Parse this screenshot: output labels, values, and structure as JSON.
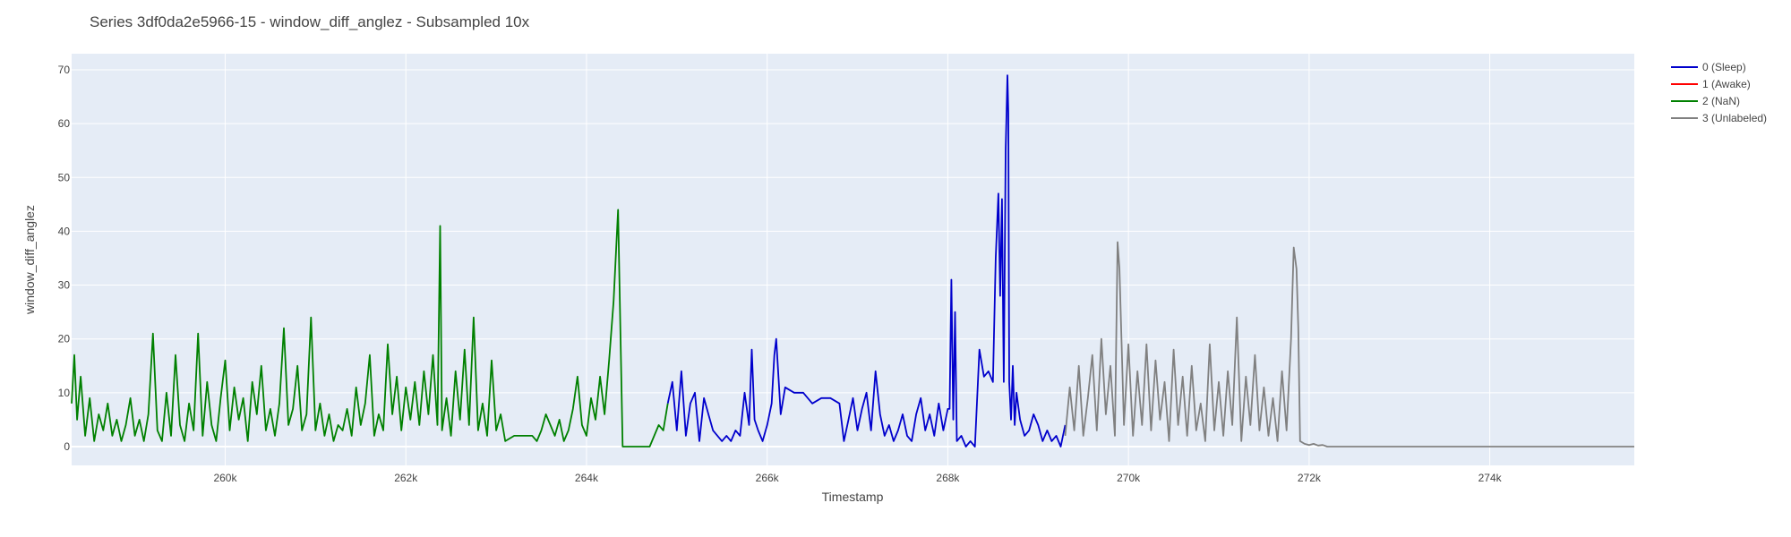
{
  "chart_data": {
    "type": "line",
    "title": "Series 3df0da2e5966-15 - window_diff_anglez - Subsampled 10x",
    "xlabel": "Timestamp",
    "ylabel": "window_diff_anglez",
    "xlim": [
      258300,
      275600
    ],
    "ylim": [
      -3.5,
      73
    ],
    "grid": true,
    "legend_position": "right",
    "x_ticks": [
      {
        "value": 260000,
        "label": "260k"
      },
      {
        "value": 262000,
        "label": "262k"
      },
      {
        "value": 264000,
        "label": "264k"
      },
      {
        "value": 266000,
        "label": "266k"
      },
      {
        "value": 268000,
        "label": "268k"
      },
      {
        "value": 270000,
        "label": "270k"
      },
      {
        "value": 272000,
        "label": "272k"
      },
      {
        "value": 274000,
        "label": "274k"
      }
    ],
    "y_ticks": [
      {
        "value": 0,
        "label": "0"
      },
      {
        "value": 10,
        "label": "10"
      },
      {
        "value": 20,
        "label": "20"
      },
      {
        "value": 30,
        "label": "30"
      },
      {
        "value": 40,
        "label": "40"
      },
      {
        "value": 50,
        "label": "50"
      },
      {
        "value": 60,
        "label": "60"
      },
      {
        "value": 70,
        "label": "70"
      }
    ],
    "series": [
      {
        "name": "0 (Sleep)",
        "color": "#0000cc",
        "x": [
          264900,
          264950,
          265000,
          265050,
          265100,
          265150,
          265200,
          265250,
          265300,
          265350,
          265400,
          265450,
          265500,
          265550,
          265600,
          265650,
          265700,
          265750,
          265800,
          265830,
          265860,
          265900,
          265950,
          266000,
          266050,
          266080,
          266100,
          266150,
          266200,
          266300,
          266400,
          266500,
          266600,
          266700,
          266800,
          266850,
          266900,
          266950,
          267000,
          267050,
          267100,
          267150,
          267200,
          267250,
          267300,
          267350,
          267400,
          267450,
          267500,
          267550,
          267600,
          267650,
          267700,
          267750,
          267800,
          267850,
          267900,
          267950,
          268000,
          268020,
          268040,
          268060,
          268080,
          268100,
          268150,
          268200,
          268250,
          268300,
          268350,
          268400,
          268450,
          268500,
          268530,
          268560,
          268580,
          268600,
          268620,
          268640,
          268660,
          268670,
          268680,
          268700,
          268720,
          268740,
          268760,
          268800,
          268850,
          268900,
          268950,
          269000,
          269050,
          269100,
          269150,
          269200,
          269250,
          269300
        ],
        "y": [
          8,
          12,
          3,
          14,
          2,
          8,
          10,
          1,
          9,
          6,
          3,
          2,
          1,
          2,
          1,
          3,
          2,
          10,
          4,
          18,
          5,
          3,
          1,
          4,
          8,
          17,
          20,
          6,
          11,
          10,
          10,
          8,
          9,
          9,
          8,
          1,
          5,
          9,
          3,
          7,
          10,
          3,
          14,
          6,
          2,
          4,
          1,
          3,
          6,
          2,
          1,
          6,
          9,
          3,
          6,
          2,
          8,
          3,
          7,
          7,
          31,
          5,
          25,
          1,
          2,
          0,
          1,
          0,
          18,
          13,
          14,
          12,
          35,
          47,
          28,
          46,
          12,
          55,
          69,
          62,
          12,
          5,
          15,
          4,
          10,
          5,
          2,
          3,
          6,
          4,
          1,
          3,
          1,
          2,
          0,
          4
        ]
      },
      {
        "name": "1 (Awake)",
        "color": "#ff0000",
        "x": [],
        "y": []
      },
      {
        "name": "2 (NaN)",
        "color": "#008000",
        "x": [
          258300,
          258330,
          258360,
          258400,
          258450,
          258500,
          258550,
          258600,
          258650,
          258700,
          258750,
          258800,
          258850,
          258900,
          258950,
          259000,
          259050,
          259100,
          259150,
          259200,
          259250,
          259300,
          259350,
          259400,
          259450,
          259500,
          259550,
          259600,
          259650,
          259700,
          259750,
          259800,
          259850,
          259900,
          259950,
          260000,
          260050,
          260100,
          260150,
          260200,
          260250,
          260300,
          260350,
          260400,
          260450,
          260500,
          260550,
          260600,
          260650,
          260700,
          260750,
          260800,
          260850,
          260900,
          260950,
          261000,
          261050,
          261100,
          261150,
          261200,
          261250,
          261300,
          261350,
          261400,
          261450,
          261500,
          261550,
          261600,
          261650,
          261700,
          261750,
          261800,
          261850,
          261900,
          261950,
          262000,
          262050,
          262100,
          262150,
          262200,
          262250,
          262300,
          262350,
          262380,
          262400,
          262450,
          262500,
          262550,
          262600,
          262650,
          262700,
          262750,
          262800,
          262850,
          262900,
          262950,
          263000,
          263050,
          263100,
          263200,
          263300,
          263400,
          263450,
          263500,
          263550,
          263600,
          263650,
          263700,
          263750,
          263800,
          263850,
          263900,
          263950,
          264000,
          264050,
          264100,
          264150,
          264200,
          264250,
          264300,
          264350,
          264400,
          264500,
          264600,
          264700,
          264800,
          264850,
          264900
        ],
        "y": [
          8,
          17,
          5,
          13,
          2,
          9,
          1,
          6,
          3,
          8,
          2,
          5,
          1,
          4,
          9,
          2,
          5,
          1,
          6,
          21,
          3,
          1,
          10,
          2,
          17,
          4,
          1,
          8,
          3,
          21,
          2,
          12,
          4,
          1,
          9,
          16,
          3,
          11,
          5,
          9,
          1,
          12,
          6,
          15,
          3,
          7,
          2,
          8,
          22,
          4,
          7,
          15,
          3,
          6,
          24,
          3,
          8,
          2,
          6,
          1,
          4,
          3,
          7,
          2,
          11,
          4,
          8,
          17,
          2,
          6,
          3,
          19,
          6,
          13,
          3,
          11,
          5,
          12,
          4,
          14,
          6,
          17,
          4,
          41,
          3,
          9,
          2,
          14,
          5,
          18,
          4,
          24,
          3,
          8,
          2,
          16,
          3,
          6,
          1,
          2,
          2,
          2,
          1,
          3,
          6,
          4,
          2,
          5,
          1,
          3,
          7,
          13,
          4,
          2,
          9,
          5,
          13,
          6,
          16,
          27,
          44,
          0,
          0,
          0,
          0,
          4,
          3,
          8
        ]
      },
      {
        "name": "3 (Unlabeled)",
        "color": "#808080",
        "x": [
          269300,
          269350,
          269400,
          269450,
          269500,
          269550,
          269600,
          269650,
          269700,
          269750,
          269800,
          269850,
          269880,
          269900,
          269950,
          270000,
          270050,
          270100,
          270150,
          270200,
          270250,
          270300,
          270350,
          270400,
          270450,
          270500,
          270550,
          270600,
          270650,
          270700,
          270750,
          270800,
          270850,
          270900,
          270950,
          271000,
          271050,
          271100,
          271150,
          271200,
          271250,
          271300,
          271350,
          271400,
          271450,
          271500,
          271550,
          271600,
          271650,
          271700,
          271750,
          271800,
          271830,
          271860,
          271880,
          271900,
          271950,
          272000,
          272050,
          272100,
          272150,
          272200,
          272500,
          273000,
          273500,
          274000,
          274500,
          275000,
          275600
        ],
        "y": [
          2,
          11,
          3,
          15,
          2,
          9,
          17,
          3,
          20,
          6,
          15,
          2,
          38,
          33,
          4,
          19,
          2,
          14,
          4,
          19,
          3,
          16,
          5,
          12,
          1,
          18,
          4,
          13,
          2,
          15,
          3,
          8,
          1,
          19,
          3,
          12,
          2,
          14,
          4,
          24,
          1,
          13,
          4,
          17,
          3,
          11,
          2,
          9,
          1,
          14,
          3,
          20,
          37,
          33,
          22,
          1,
          0.5,
          0.3,
          0.5,
          0.2,
          0.3,
          0,
          0,
          0,
          0,
          0,
          0,
          0,
          0
        ]
      }
    ]
  }
}
